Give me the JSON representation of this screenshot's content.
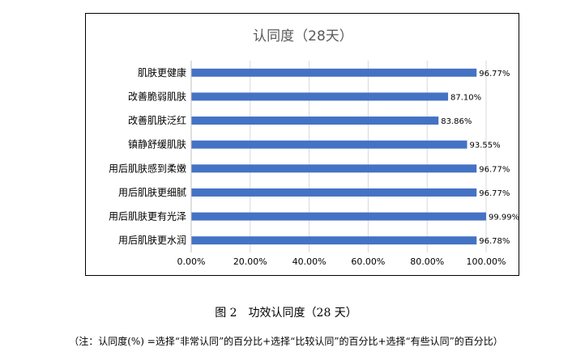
{
  "chart_data": {
    "type": "bar",
    "orientation": "horizontal",
    "title": "认同度（28天）",
    "categories": [
      "肌肤更健康",
      "改善脆弱肌肤",
      "改善肌肤泛红",
      "镇静舒缓肌肤",
      "用后肌肤感到柔嫩",
      "用后肌肤更细腻",
      "用后肌肤更有光泽",
      "用后肌肤更水润"
    ],
    "values": [
      96.77,
      87.1,
      83.86,
      93.55,
      96.77,
      96.77,
      99.99,
      96.78
    ],
    "value_labels": [
      "96.77%",
      "87.10%",
      "83.86%",
      "93.55%",
      "96.77%",
      "96.77%",
      "99.99%",
      "96.78%"
    ],
    "xlim": [
      0,
      100
    ],
    "x_ticks": [
      0,
      20,
      40,
      60,
      80,
      100
    ],
    "x_tick_labels": [
      "0.00%",
      "20.00%",
      "40.00%",
      "60.00%",
      "80.00%",
      "100.00%"
    ],
    "grid": true,
    "legend": false,
    "bar_color": "#4472C4",
    "grid_color": "#D9D9D9",
    "title_color": "#595959"
  },
  "caption": {
    "figure": "图 2　功效认同度（28 天）",
    "note": "（注：认同度(%) =选择“非常认同”的百分比+选择“比较认同”的百分比+选择“有些认同”的百分比）"
  }
}
